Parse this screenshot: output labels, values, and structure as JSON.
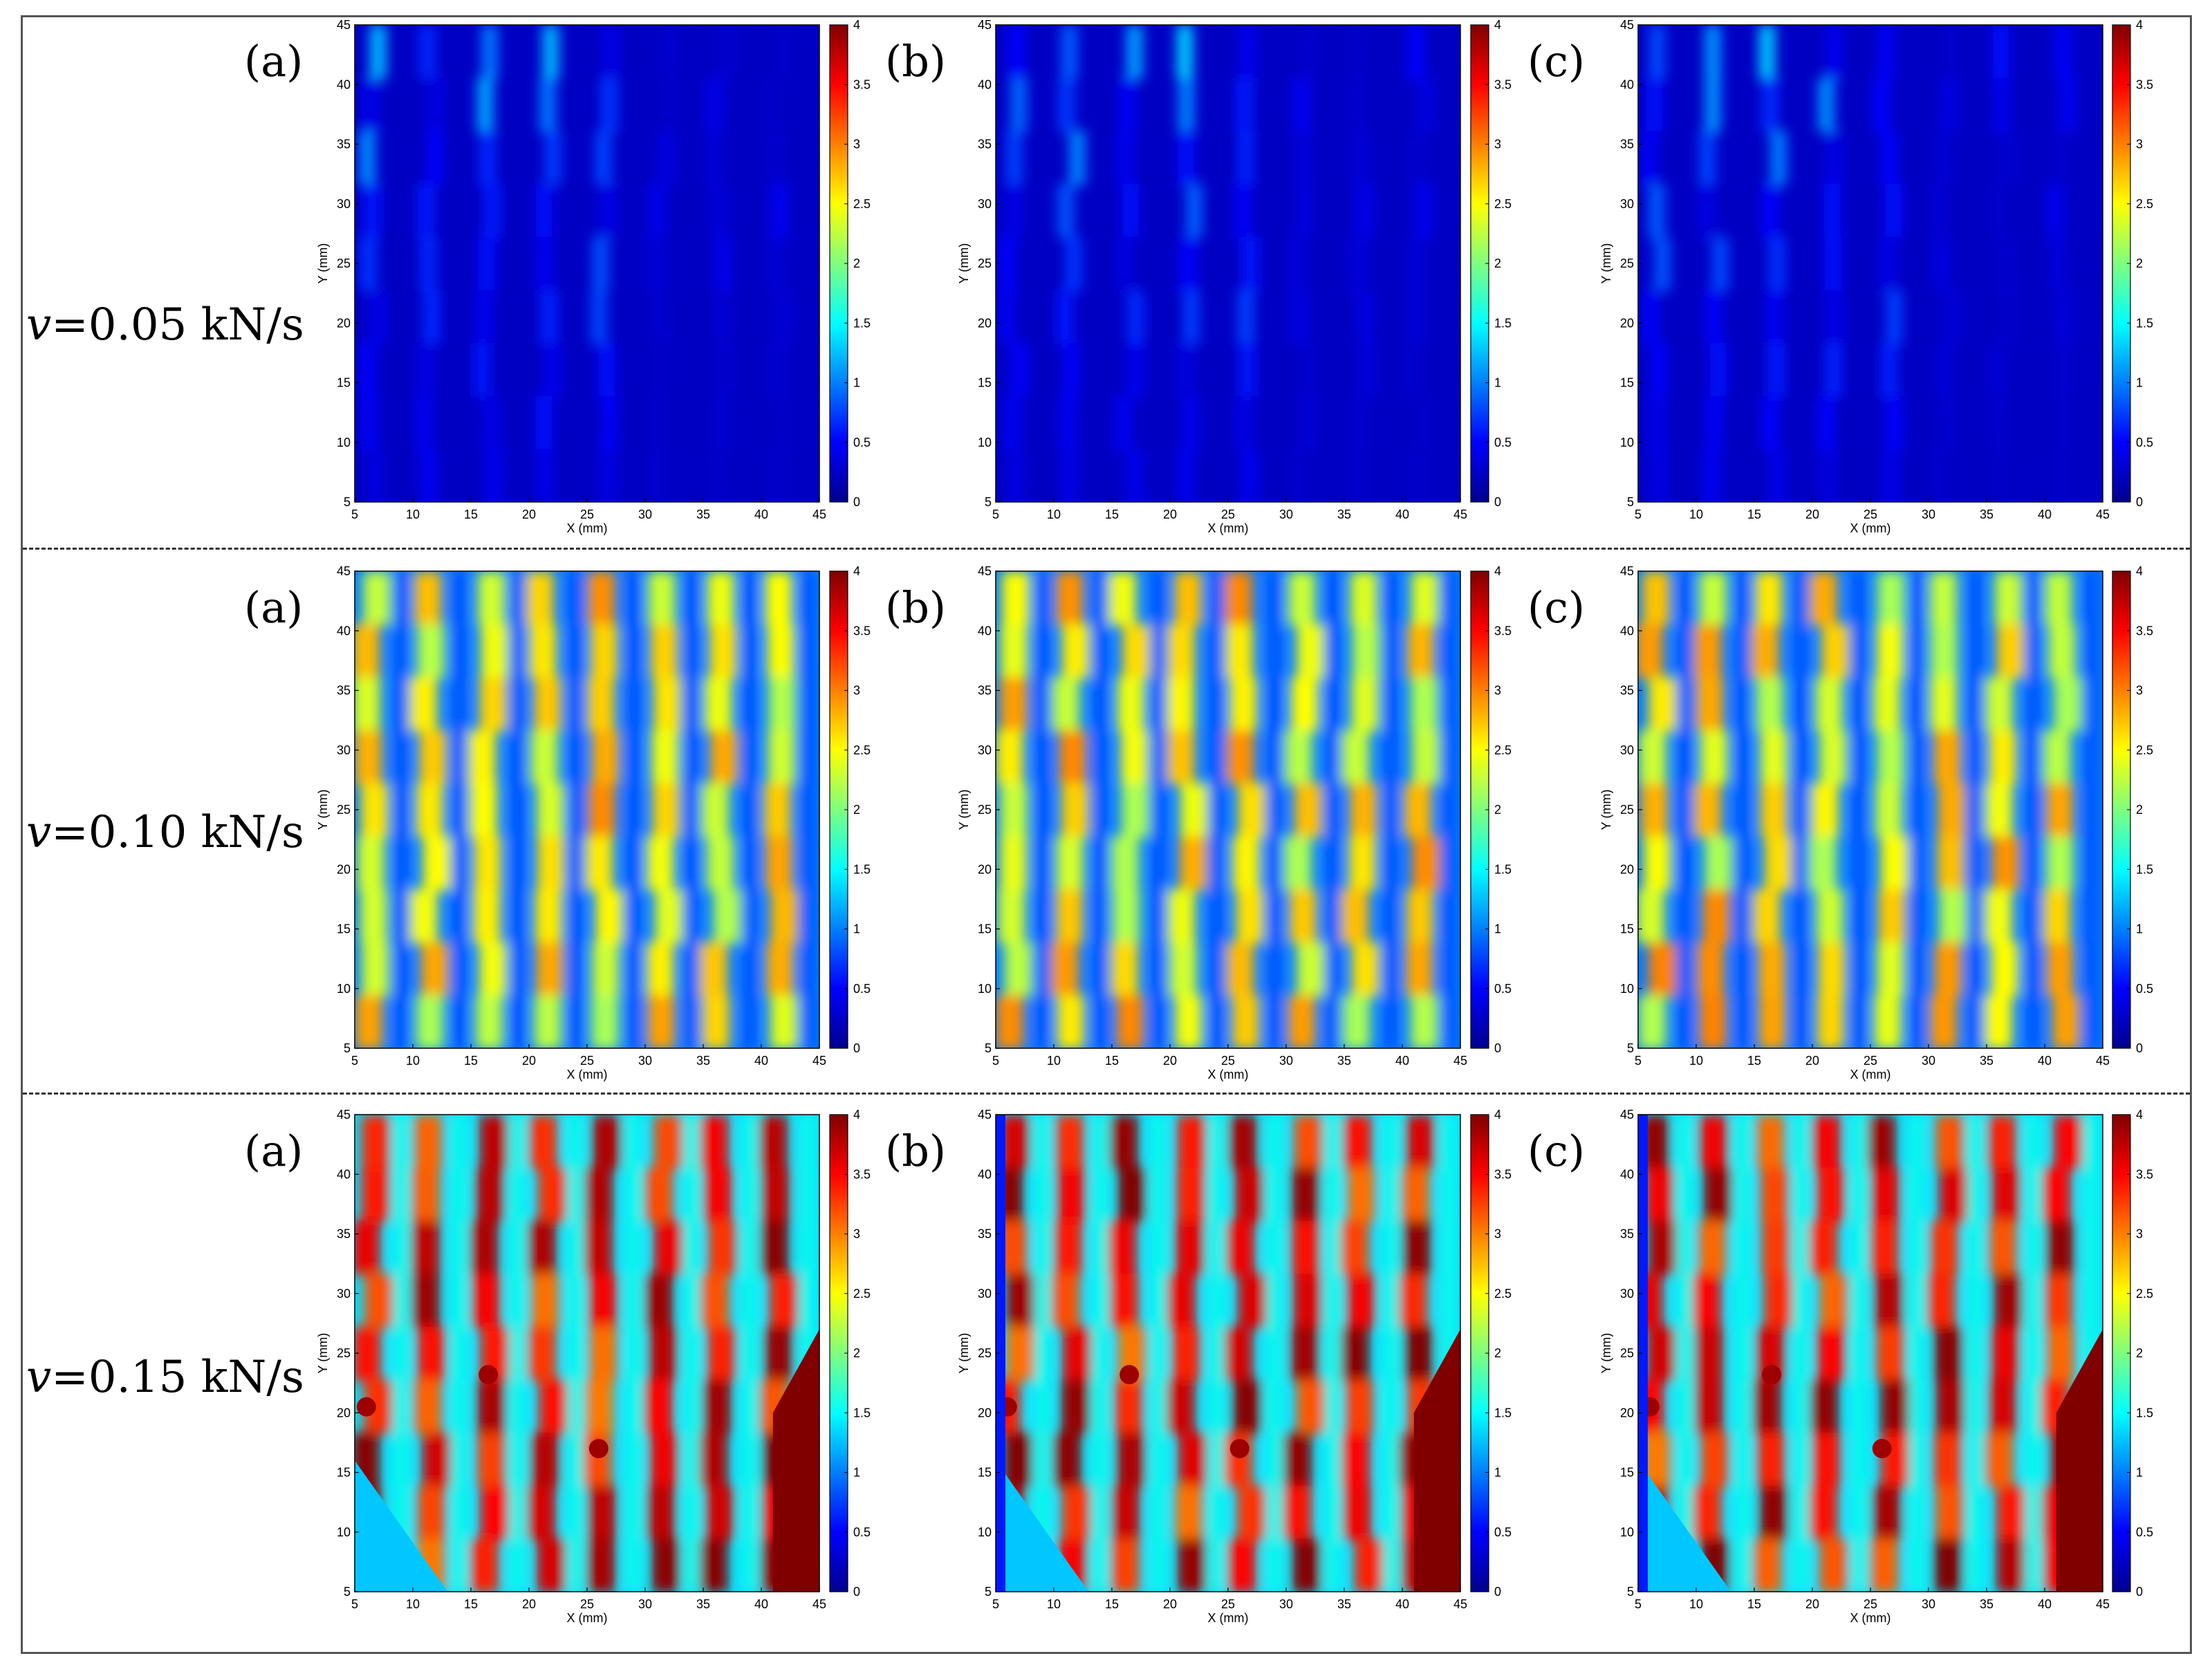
{
  "rows": [
    {
      "prefix": "v",
      "rest": "=0.05 kN/s",
      "level": 0.3
    },
    {
      "prefix": "v",
      "rest": "=0.10 kN/s",
      "level": 1.8
    },
    {
      "prefix": "v",
      "rest": "=0.15 kN/s",
      "level": 2.6
    }
  ],
  "panel_letters": [
    "(a)",
    "(b)",
    "(c)"
  ],
  "chart_data": {
    "type": "heatmap",
    "xlabel": "X (mm)",
    "ylabel": "Y (mm)",
    "xlim": [
      5,
      45
    ],
    "ylim": [
      5,
      45
    ],
    "xticks": [
      5,
      10,
      15,
      20,
      25,
      30,
      35,
      40,
      45
    ],
    "yticks": [
      5,
      10,
      15,
      20,
      25,
      30,
      35,
      40,
      45
    ],
    "colorbar": {
      "min": 0,
      "max": 4,
      "ticks": [
        "0",
        "0.5",
        "1",
        "1.5",
        "2",
        "2.5",
        "3",
        "3.5",
        "4"
      ],
      "colormap": "jet"
    },
    "stripe_x_mm": [
      6.5,
      11.5,
      16.5,
      21.5,
      26.5,
      31.5,
      36.5,
      41.5
    ],
    "rows": [
      {
        "rate": "v=0.05 kN/s",
        "mean_value": 0.3,
        "peak_value": 1.3
      },
      {
        "rate": "v=0.10 kN/s",
        "mean_value": 1.8,
        "peak_value": 3.0
      },
      {
        "rate": "v=0.15 kN/s",
        "mean_value": 2.6,
        "peak_value": 4.0
      }
    ]
  }
}
